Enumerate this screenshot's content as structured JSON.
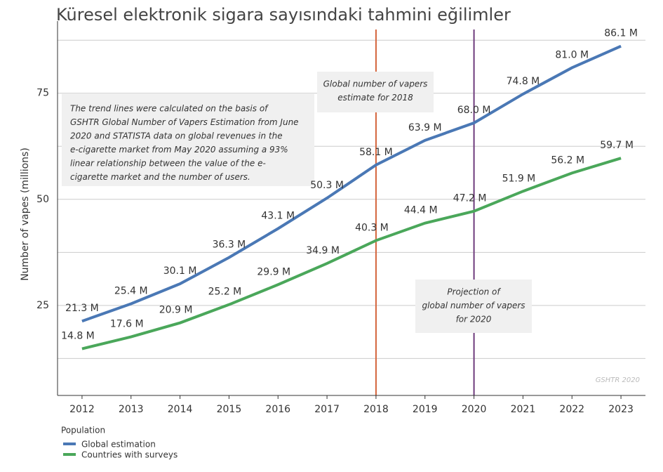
{
  "chart_data": {
    "type": "line",
    "title": "Küresel elektronik sigara sayısındaki tahmini eğilimler",
    "y_label": "Number of vapes (millions)",
    "categories": [
      "2012",
      "2013",
      "2014",
      "2015",
      "2016",
      "2017",
      "2018",
      "2019",
      "2020",
      "2021",
      "2022",
      "2023"
    ],
    "series": [
      {
        "name": "Global estimation",
        "color": "#4a78b5",
        "values": [
          21.3,
          25.4,
          30.1,
          36.3,
          43.1,
          50.3,
          58.1,
          63.9,
          68.0,
          74.8,
          81.0,
          86.1
        ],
        "value_labels": [
          "21.3 M",
          "25.4 M",
          "30.1 M",
          "36.3 M",
          "43.1 M",
          "50.3 M",
          "58.1 M",
          "63.9 M",
          "68.0 M",
          "74.8 M",
          "81.0 M",
          "86.1 M"
        ]
      },
      {
        "name": "Countries with surveys",
        "color": "#4aa75a",
        "values": [
          14.8,
          17.6,
          20.9,
          25.2,
          29.9,
          34.9,
          40.3,
          44.4,
          47.2,
          51.9,
          56.2,
          59.7
        ],
        "value_labels": [
          "14.8 M",
          "17.6 M",
          "20.9 M",
          "25.2 M",
          "29.9 M",
          "34.9 M",
          "40.3 M",
          "44.4 M",
          "47.2 M",
          "51.9 M",
          "56.2 M",
          "59.7 M"
        ]
      }
    ],
    "ylim": [
      3.8,
      92
    ],
    "yticks": [
      25,
      50,
      75
    ],
    "minor_yticks": [
      12.5,
      37.5,
      62.5,
      87.5
    ],
    "grid": true,
    "legend_title": "Population",
    "legend_position": "bottom-left",
    "vertical_lines": [
      {
        "x": "2018",
        "color": "#d4643c"
      },
      {
        "x": "2020",
        "color": "#6e3b7c"
      }
    ],
    "annotations": [
      [
        "The trend lines were calculated on the basis of",
        "GSHTR Global Number of Vapers Estimation from June",
        "2020 and STATISTA data on global revenues in the",
        "e-cigarette market from May 2020 assuming a 93%",
        "linear relationship between the value of the e-",
        "cigarette market and the number of users."
      ],
      [
        "Global number of vapers",
        "estimate for 2018"
      ],
      [
        "Projection of",
        "global number of vapers",
        "for 2020"
      ]
    ],
    "source": "GSHTR 2020"
  }
}
